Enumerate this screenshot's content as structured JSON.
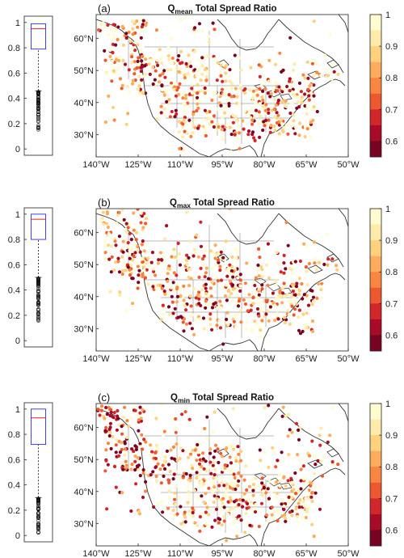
{
  "figure": {
    "colorbar": {
      "ticks": [
        "1",
        "0.9",
        "0.8",
        "0.7",
        "0.6"
      ],
      "colors": [
        "#fffccf",
        "#feebaa",
        "#fed17e",
        "#fdac5c",
        "#f98640",
        "#ec5931",
        "#d1262a",
        "#a80b26",
        "#780424"
      ]
    },
    "map": {
      "lon_ticks": [
        "140°W",
        "125°W",
        "110°W",
        "95°W",
        "80°W",
        "65°W",
        "50°W"
      ],
      "lat_ticks": [
        "60°N",
        "50°N",
        "40°N",
        "30°N"
      ]
    },
    "boxplot": {
      "ticks": [
        "1",
        "0.8",
        "0.6",
        "0.4",
        "0.2",
        "0"
      ]
    }
  },
  "chart_data": [
    {
      "type": "scatter",
      "panel_label": "(a)",
      "title_main": "Q",
      "title_sub": "mean",
      "title_rest": " Total Spread Ratio",
      "box": {
        "q1": 0.79,
        "median": 0.95,
        "q3": 0.99,
        "whisker_low": 0.46,
        "whisker_high": 1.0,
        "outlier_min": 0.14
      },
      "colorbar_range": [
        0.55,
        1.0
      ]
    },
    {
      "type": "scatter",
      "panel_label": "(b)",
      "title_main": "Q",
      "title_sub": "max",
      "title_rest": " Total Spread Ratio",
      "box": {
        "q1": 0.8,
        "median": 0.96,
        "q3": 1.0,
        "whisker_low": 0.5,
        "whisker_high": 1.0,
        "outlier_min": 0.15
      },
      "colorbar_range": [
        0.55,
        1.0
      ]
    },
    {
      "type": "scatter",
      "panel_label": "(c)",
      "title_main": "Q",
      "title_sub": "min",
      "title_rest": " Total Spread Ratio",
      "box": {
        "q1": 0.72,
        "median": 0.93,
        "q3": 1.0,
        "whisker_low": 0.3,
        "whisker_high": 1.0,
        "outlier_min": 0.02
      },
      "colorbar_range": [
        0.55,
        1.0
      ]
    }
  ]
}
